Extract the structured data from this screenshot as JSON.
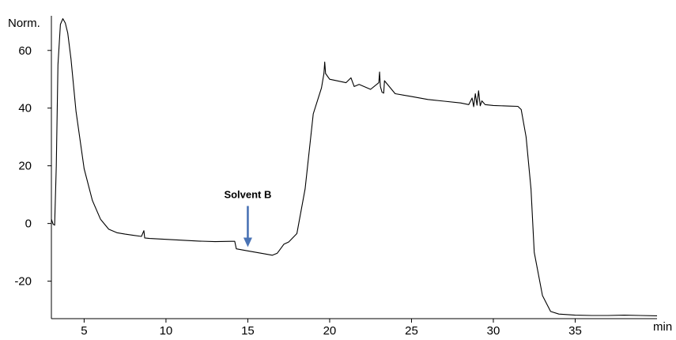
{
  "chart_data": {
    "type": "line",
    "ylabel": "Norm.",
    "xlabel": "min",
    "xlim": [
      3,
      40
    ],
    "ylim": [
      -33,
      72
    ],
    "xticks": [
      5,
      10,
      15,
      20,
      25,
      30,
      35
    ],
    "yticks": [
      -20,
      0,
      20,
      40,
      60
    ],
    "grid": false,
    "series": [
      {
        "color": "#000000",
        "x": [
          3.0,
          3.1,
          3.2,
          3.3,
          3.4,
          3.55,
          3.7,
          3.85,
          4.0,
          4.2,
          4.5,
          5.0,
          5.5,
          6.0,
          6.5,
          7.0,
          7.5,
          8.0,
          8.5,
          8.65,
          8.7,
          9.0,
          10.0,
          11.0,
          12.0,
          13.0,
          14.0,
          14.2,
          14.3,
          15.0,
          16.0,
          16.5,
          16.8,
          17.0,
          17.2,
          17.5,
          18.0,
          18.5,
          19.0,
          19.5,
          19.65,
          19.7,
          19.75,
          20.0,
          21.0,
          21.3,
          21.5,
          21.8,
          22.5,
          23.0,
          23.05,
          23.1,
          23.2,
          23.3,
          23.35,
          24.0,
          25.0,
          26.0,
          27.0,
          28.0,
          28.5,
          28.7,
          28.8,
          28.9,
          29.0,
          29.1,
          29.2,
          29.3,
          29.5,
          30.0,
          31.0,
          31.5,
          31.7,
          32.0,
          32.3,
          32.5,
          33.0,
          33.5,
          34.0,
          35.0,
          36.0,
          37.0,
          38.0,
          39.0,
          40.0
        ],
        "y": [
          1.5,
          -0.2,
          -0.6,
          20,
          55,
          69,
          71,
          69.5,
          66,
          57,
          39,
          19,
          8,
          1.5,
          -2,
          -3.2,
          -3.7,
          -4.1,
          -4.5,
          -2.5,
          -5.0,
          -5.2,
          -5.5,
          -5.8,
          -6.1,
          -6.3,
          -6.2,
          -6.2,
          -8.8,
          -9.5,
          -10.5,
          -11.0,
          -10.3,
          -8.8,
          -7.2,
          -6.4,
          -3.5,
          12,
          38,
          47,
          52,
          56,
          52,
          50,
          48.8,
          50.5,
          47.5,
          48.2,
          46.5,
          48.8,
          52.5,
          47.5,
          45.5,
          45.2,
          49.5,
          45,
          44,
          43,
          42.4,
          41.8,
          41.2,
          43.5,
          40.5,
          45,
          41,
          46,
          40.8,
          42.5,
          41.2,
          40.9,
          40.7,
          40.6,
          39.5,
          30,
          12,
          -10,
          -25,
          -30.5,
          -31.4,
          -31.8,
          -31.9,
          -31.9,
          -31.8,
          -31.9,
          -32
        ]
      }
    ],
    "annotations": [
      {
        "text": "Solvent B",
        "x": 15.0,
        "y": -6.0,
        "arrow_color": "#4a73b5"
      }
    ]
  }
}
